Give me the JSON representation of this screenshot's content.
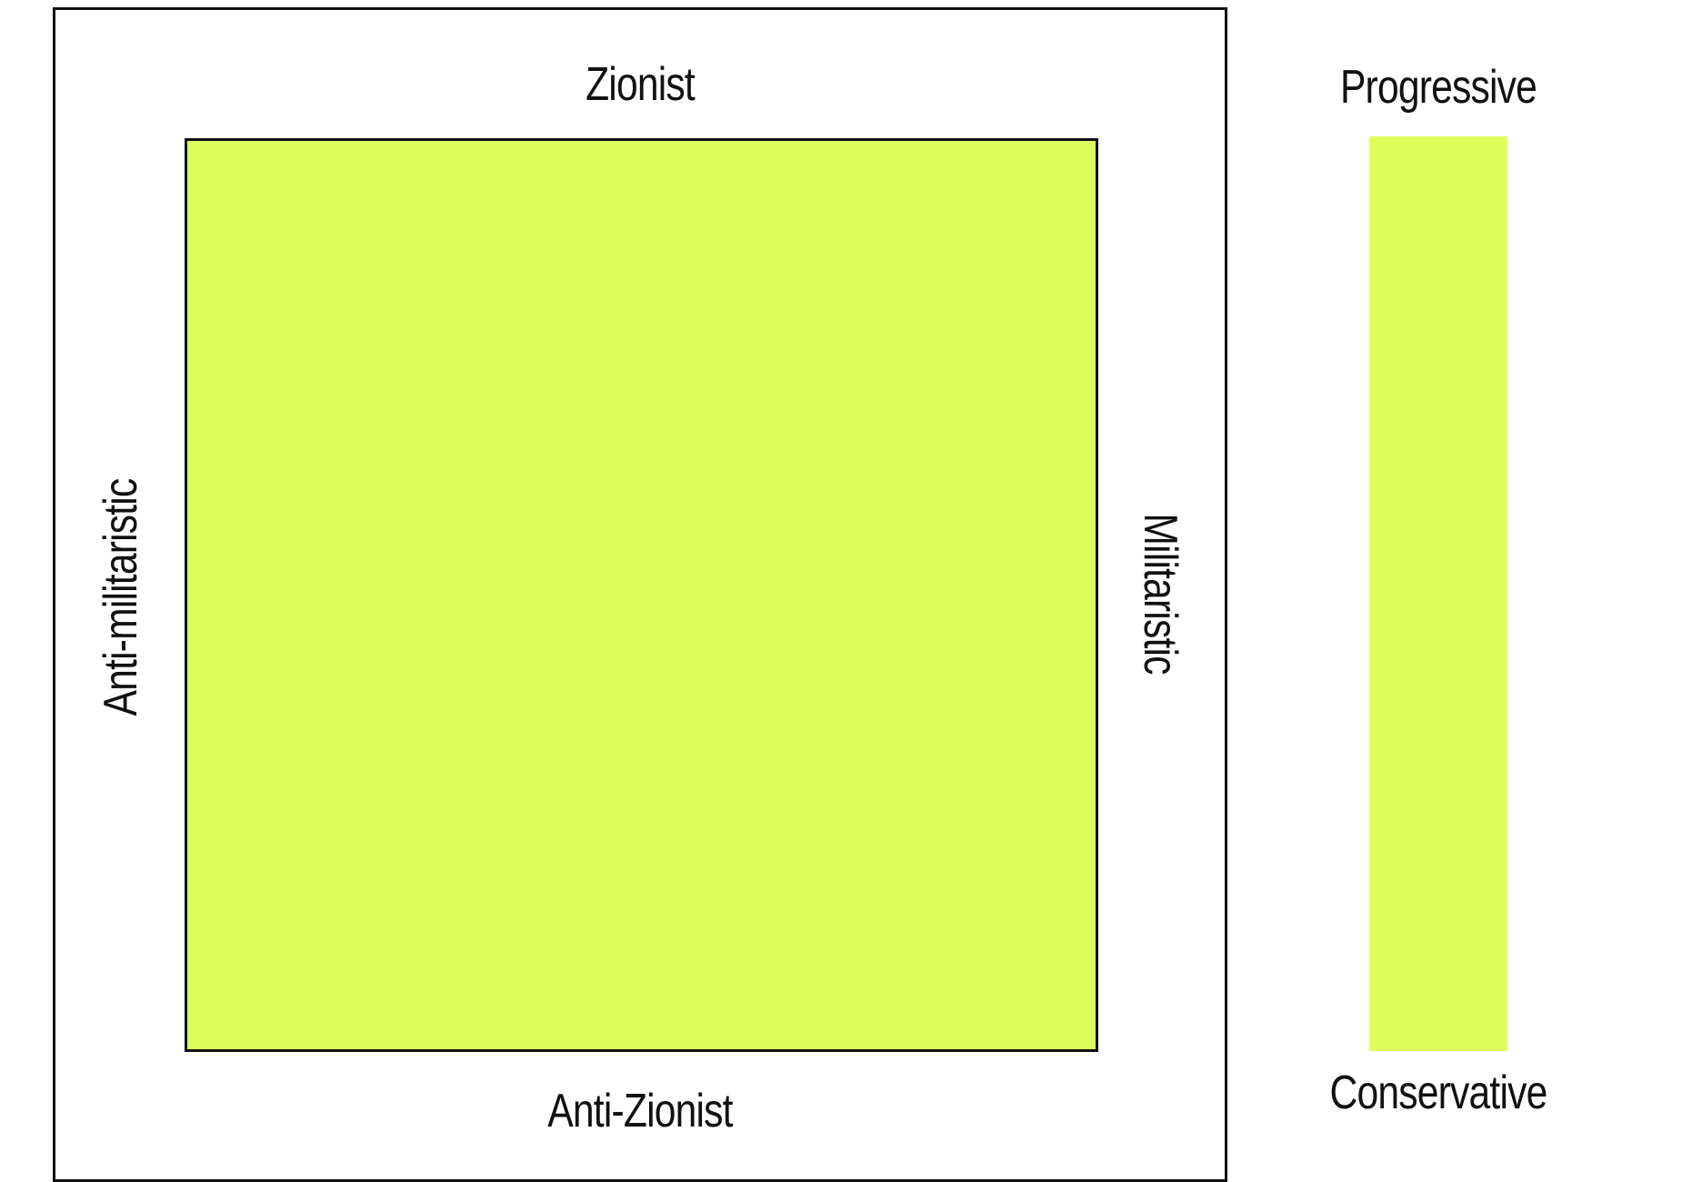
{
  "compass": {
    "top_label": "Zionist",
    "bottom_label": "Anti-Zionist",
    "left_label": "Anti-militaristic",
    "right_label": "Militaristic",
    "fill_color": "#dcff5c"
  },
  "scale": {
    "top_label": "Progressive",
    "bottom_label": "Conservative",
    "fill_color": "#dcff5c"
  }
}
